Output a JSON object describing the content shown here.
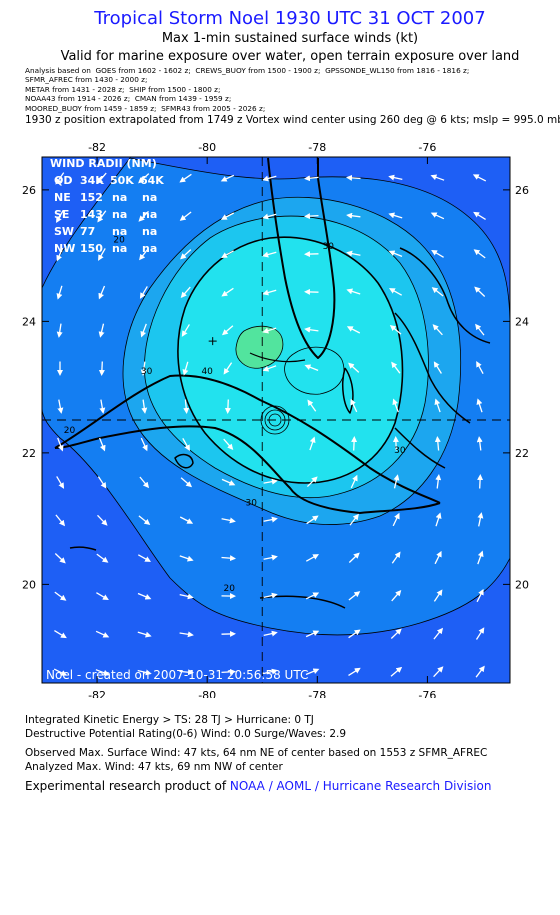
{
  "header": {
    "title": "Tropical Storm Noel 1930 UTC 31 OCT 2007",
    "subtitle": "Max 1-min sustained surface winds (kt)",
    "validity": "Valid for marine exposure over water, open terrain exposure over land",
    "sources": [
      "Analysis based on  GOES from 1602 - 1602 z;  CREWS_BUOY from 1500 - 1900 z;  GPSSONDE_WL150 from 1816 - 1816 z;",
      "SFMR_AFREC from 1430 - 2000 z;",
      "METAR from 1431 - 2028 z;  SHIP from 1500 - 1800 z;",
      "NOAA43 from 1914 - 2026 z;  CMAN from 1439 - 1959 z;",
      "MOORED_BUOY from 1459 - 1859 z;  SFMR43 from 2005 - 2026 z;"
    ],
    "position_note": "1930 z position extrapolated from 1749 z Vortex wind center using 260 deg @ 6 kts; mslp = 995.0 mb"
  },
  "map": {
    "lon_ticks": [
      "-82",
      "-80",
      "-78",
      "-76"
    ],
    "lat_ticks": [
      "26",
      "24",
      "22",
      "20"
    ],
    "lon_range": [
      -83,
      -74.5
    ],
    "lat_range": [
      18.5,
      26.5
    ],
    "storm_center": {
      "lon": -79.9,
      "lat": 23.7
    },
    "crosshair": {
      "lon": -79.0,
      "lat": 22.5
    },
    "contour_labels": [
      {
        "text": "20",
        "lon": -81.6,
        "lat": 25.2
      },
      {
        "text": "30",
        "lon": -77.8,
        "lat": 25.1
      },
      {
        "text": "20",
        "lon": -82.5,
        "lat": 22.3
      },
      {
        "text": "40",
        "lon": -80.0,
        "lat": 23.2
      },
      {
        "text": "30",
        "lon": -81.1,
        "lat": 23.2
      },
      {
        "text": "30",
        "lon": -76.5,
        "lat": 22.0
      },
      {
        "text": "30",
        "lon": -79.2,
        "lat": 21.2
      },
      {
        "text": "20",
        "lon": -79.6,
        "lat": 19.9
      }
    ],
    "credit": "Noel - created on 2007-10-31 20:56:58 UTC",
    "colors": {
      "land_line": "#000000",
      "c_lt20": "#1e5ff5",
      "c_20_30": "#147ef2",
      "c_30_35": "#1ca6ef",
      "c_35_40": "#1cc6ef",
      "c_40_45": "#22e2ee",
      "c_ge45": "#52e49e"
    }
  },
  "wind_radii": {
    "heading": "WIND RADII (NM)",
    "columns": [
      "QD",
      "34K",
      "50K",
      "64K"
    ],
    "rows": [
      {
        "quadrant": "NE",
        "r34": "152",
        "r50": "na",
        "r64": "na"
      },
      {
        "quadrant": "SE",
        "r34": "143",
        "r50": "na",
        "r64": "na"
      },
      {
        "quadrant": "SW",
        "r34": "77",
        "r50": "na",
        "r64": "na"
      },
      {
        "quadrant": "NW",
        "r34": "150",
        "r50": "na",
        "r64": "na"
      }
    ]
  },
  "footer": {
    "ike": "Integrated Kinetic Energy > TS: 28 TJ   > Hurricane: 0 TJ",
    "rating": "Destructive Potential Rating(0-6)   Wind: 0.0 Surge/Waves: 2.9",
    "observed": "Observed Max. Surface Wind: 47 kts, 64 nm NE of center based on 1553 z SFMR_AFREC",
    "analyzed": "Analyzed Max. Wind: 47 kts, 69 nm NW of center",
    "credit_prefix": "Experimental research product of ",
    "credit_org": "NOAA / AOML / Hurricane Research Division"
  }
}
